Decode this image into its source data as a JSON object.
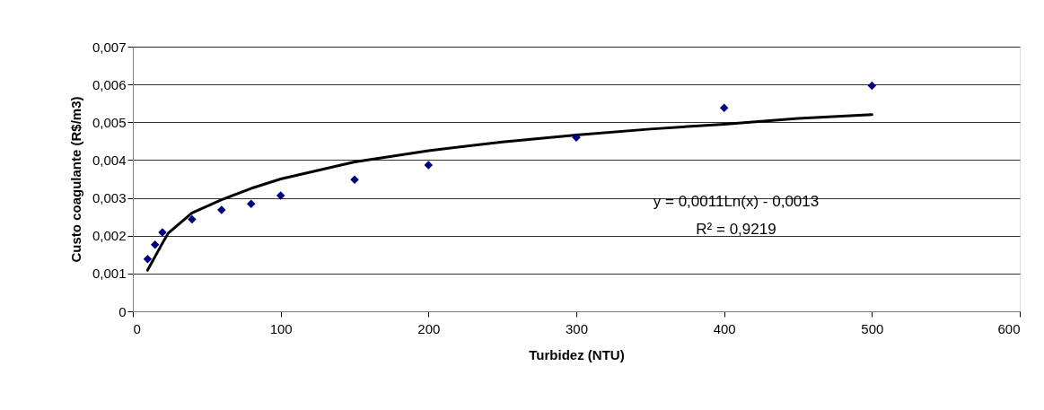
{
  "chart_data": {
    "type": "scatter",
    "xlabel": "Turbidez (NTU)",
    "ylabel": "Custo coagulante (R$/m3)",
    "xlim": [
      0,
      600
    ],
    "xticks": [
      0,
      100,
      200,
      300,
      400,
      500,
      600
    ],
    "ylim": [
      0,
      0.007
    ],
    "yticks": [
      0,
      {
        "value": 0.001,
        "label": "0,001"
      },
      {
        "value": 0.002,
        "label": "0,002"
      },
      {
        "value": 0.003,
        "label": "0,003"
      },
      {
        "value": 0.004,
        "label": "0,004"
      },
      {
        "value": 0.005,
        "label": "0,005"
      },
      {
        "value": 0.006,
        "label": "0,006"
      },
      {
        "value": 0.007,
        "label": "0,007"
      }
    ],
    "grid": "y",
    "series": [
      {
        "type": "line",
        "color": "#000000",
        "marker": "none",
        "line_style": "solid",
        "x": [
          10,
          20,
          24,
          40,
          60,
          80,
          100,
          150,
          200,
          250,
          300,
          350,
          400,
          450,
          500
        ],
        "values": [
          0.00109,
          0.0018,
          0.00207,
          0.0026,
          0.00295,
          0.00325,
          0.0035,
          0.00395,
          0.00425,
          0.00448,
          0.00466,
          0.00482,
          0.00495,
          0.0051,
          0.0052
        ]
      },
      {
        "type": "scatter",
        "color": "#000080",
        "marker": "diamond",
        "x": [
          10,
          15,
          20,
          40,
          60,
          80,
          100,
          150,
          200,
          300,
          400,
          500
        ],
        "values": [
          0.00138,
          0.00176,
          0.00209,
          0.00243,
          0.00268,
          0.00284,
          0.00306,
          0.00348,
          0.00387,
          0.0046,
          0.00538,
          0.00597
        ]
      }
    ],
    "annotations": [
      "y = 0,0011Ln(x) - 0,0013",
      "R² = 0,9219"
    ]
  }
}
